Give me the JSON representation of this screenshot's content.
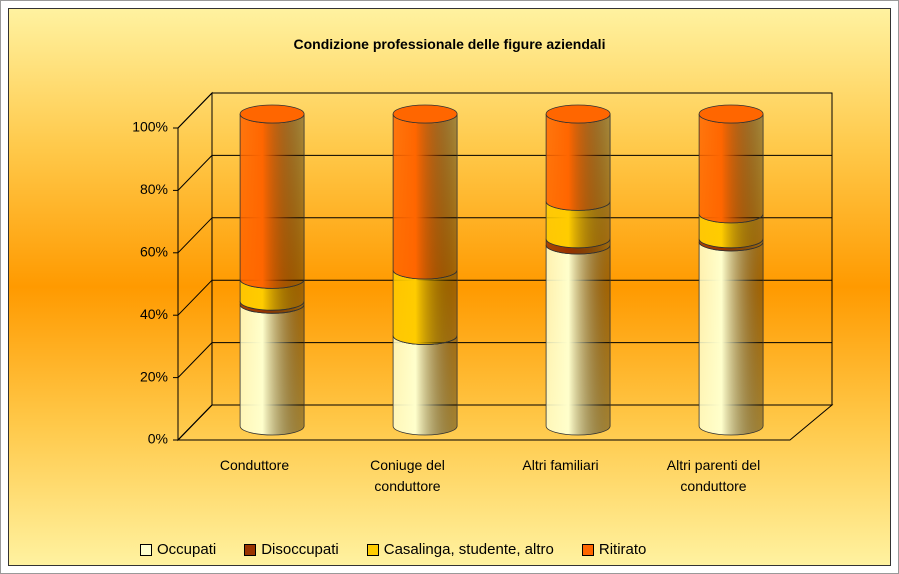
{
  "chart_data": {
    "type": "bar",
    "stacked": true,
    "title": "Condizione professionale delle figure aziendali",
    "categories": [
      "Conduttore",
      "Coniuge del conduttore",
      "Altri familiari",
      "Altri parenti del conduttore"
    ],
    "series": [
      {
        "name": "Occupati",
        "color": "#ffffcc",
        "values": [
          39,
          29,
          58,
          59
        ]
      },
      {
        "name": "Disoccupati",
        "color": "#993300",
        "values": [
          1,
          0,
          2,
          1
        ]
      },
      {
        "name": "Casalinga, studente, altro",
        "color": "#ffcc00",
        "values": [
          7,
          21,
          12,
          8
        ]
      },
      {
        "name": "Ritirato",
        "color": "#ff6600",
        "values": [
          53,
          50,
          28,
          32
        ]
      }
    ],
    "ylim": [
      0,
      100
    ],
    "yticks": [
      {
        "value": 0,
        "label": "0%"
      },
      {
        "value": 20,
        "label": "20%"
      },
      {
        "value": 40,
        "label": "40%"
      },
      {
        "value": 60,
        "label": "60%"
      },
      {
        "value": 80,
        "label": "80%"
      },
      {
        "value": 100,
        "label": "100%"
      }
    ],
    "grid": true,
    "legend": "bottom"
  }
}
